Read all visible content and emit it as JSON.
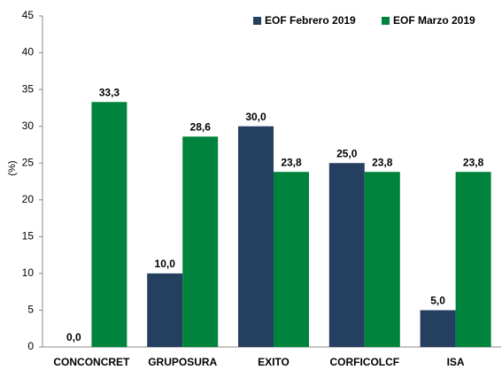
{
  "chart_data": {
    "type": "bar",
    "y_label": "(%)",
    "categories": [
      "CONCONCRET",
      "GRUPOSURA",
      "EXITO",
      "CORFICOLCF",
      "ISA"
    ],
    "series": [
      {
        "name": "EOF Febrero 2019",
        "color": "#243f60",
        "values": [
          0,
          10,
          30,
          25,
          5
        ],
        "value_labels": [
          "0,0",
          "10,0",
          "30,0",
          "25,0",
          "5,0"
        ]
      },
      {
        "name": "EOF Marzo 2019",
        "color": "#00843d",
        "values": [
          33.3,
          28.6,
          23.8,
          23.8,
          23.8
        ],
        "value_labels": [
          "33,3",
          "28,6",
          "23,8",
          "23,8",
          "23,8"
        ]
      }
    ],
    "ylim": [
      0,
      45
    ],
    "yticks": [
      0,
      5,
      10,
      15,
      20,
      25,
      30,
      35,
      40,
      45
    ],
    "legend": "top-right"
  }
}
